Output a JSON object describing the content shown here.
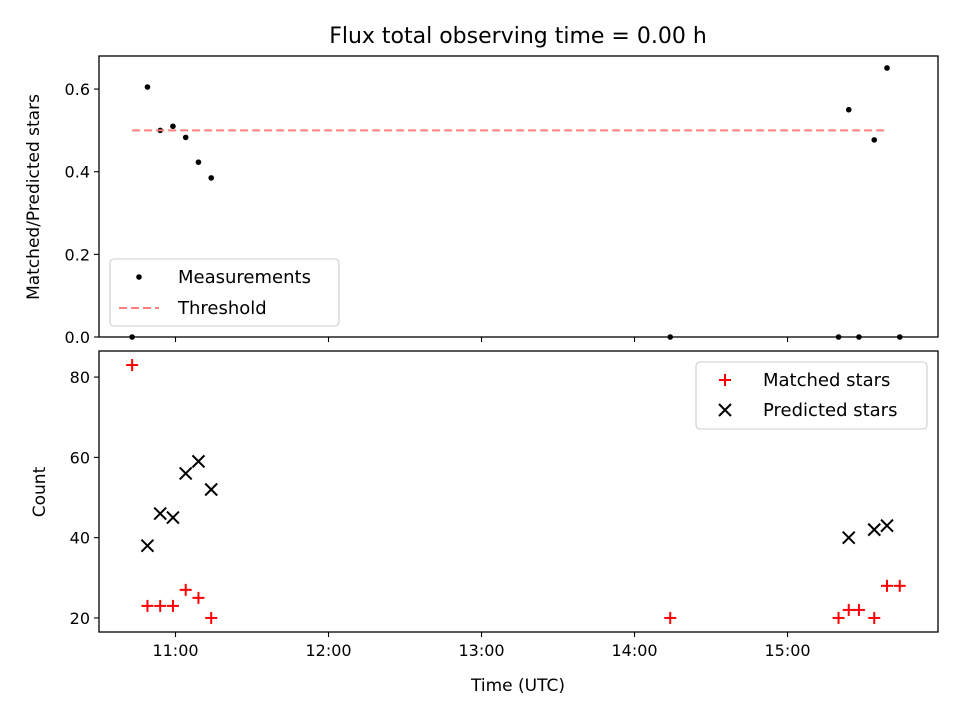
{
  "chart_data": [
    {
      "type": "scatter",
      "panel": "top",
      "title": "Flux total observing time = 0.00 h",
      "xlabel": "",
      "ylabel": "Matched/Predicted stars",
      "xlim": [
        "10:30",
        "15:59"
      ],
      "ylim": [
        0,
        0.68
      ],
      "yticks": [
        0.0,
        0.2,
        0.4,
        0.6
      ],
      "ytick_labels": [
        "0.0",
        "0.2",
        "0.4",
        "0.6"
      ],
      "xticks": [
        "11:00",
        "12:00",
        "13:00",
        "14:00",
        "15:00"
      ],
      "show_xtick_labels": false,
      "grid": false,
      "legend": "lower-left",
      "series": [
        {
          "name": "Measurements",
          "marker": "dot",
          "color": "#000000",
          "points": [
            {
              "x": "10:43",
              "y": 0.0
            },
            {
              "x": "10:49",
              "y": 0.605
            },
            {
              "x": "10:54",
              "y": 0.5
            },
            {
              "x": "10:59",
              "y": 0.51
            },
            {
              "x": "11:04",
              "y": 0.483
            },
            {
              "x": "11:09",
              "y": 0.423
            },
            {
              "x": "11:14",
              "y": 0.385
            },
            {
              "x": "14:14",
              "y": 0.0
            },
            {
              "x": "15:20",
              "y": 0.0
            },
            {
              "x": "15:24",
              "y": 0.55
            },
            {
              "x": "15:28",
              "y": 0.0
            },
            {
              "x": "15:34",
              "y": 0.477
            },
            {
              "x": "15:39",
              "y": 0.651
            },
            {
              "x": "15:44",
              "y": 0.0
            }
          ]
        },
        {
          "name": "Threshold",
          "marker": "dashed-line",
          "color": "#ff7f7f",
          "points": [
            {
              "x": "10:43",
              "y": 0.5
            },
            {
              "x": "15:39",
              "y": 0.5
            }
          ]
        }
      ]
    },
    {
      "type": "scatter",
      "panel": "bottom",
      "title": "",
      "xlabel": "Time (UTC)",
      "ylabel": "Count",
      "xlim": [
        "10:30",
        "15:59"
      ],
      "ylim": [
        16.5,
        86.5
      ],
      "yticks": [
        20,
        40,
        60,
        80
      ],
      "ytick_labels": [
        "20",
        "40",
        "60",
        "80"
      ],
      "xticks": [
        "11:00",
        "12:00",
        "13:00",
        "14:00",
        "15:00"
      ],
      "xtick_labels": [
        "11:00",
        "12:00",
        "13:00",
        "14:00",
        "15:00"
      ],
      "grid": false,
      "legend": "upper-right",
      "series": [
        {
          "name": "Matched stars",
          "marker": "plus",
          "color": "#ff0000",
          "points": [
            {
              "x": "10:43",
              "y": 83
            },
            {
              "x": "10:49",
              "y": 23
            },
            {
              "x": "10:54",
              "y": 23
            },
            {
              "x": "10:59",
              "y": 23
            },
            {
              "x": "11:04",
              "y": 27
            },
            {
              "x": "11:09",
              "y": 25
            },
            {
              "x": "11:14",
              "y": 20
            },
            {
              "x": "14:14",
              "y": 20
            },
            {
              "x": "15:20",
              "y": 20
            },
            {
              "x": "15:24",
              "y": 22
            },
            {
              "x": "15:28",
              "y": 22
            },
            {
              "x": "15:34",
              "y": 20
            },
            {
              "x": "15:39",
              "y": 28
            },
            {
              "x": "15:44",
              "y": 28
            }
          ]
        },
        {
          "name": "Predicted stars",
          "marker": "x",
          "color": "#000000",
          "points": [
            {
              "x": "10:49",
              "y": 38
            },
            {
              "x": "10:54",
              "y": 46
            },
            {
              "x": "10:59",
              "y": 45
            },
            {
              "x": "11:04",
              "y": 56
            },
            {
              "x": "11:09",
              "y": 59
            },
            {
              "x": "11:14",
              "y": 52
            },
            {
              "x": "15:24",
              "y": 40
            },
            {
              "x": "15:34",
              "y": 42
            },
            {
              "x": "15:39",
              "y": 43
            }
          ]
        }
      ]
    }
  ]
}
